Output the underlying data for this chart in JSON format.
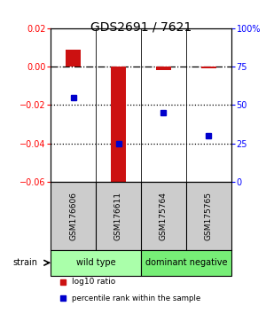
{
  "title": "GDS2691 / 7621",
  "samples": [
    "GSM176606",
    "GSM176611",
    "GSM175764",
    "GSM175765"
  ],
  "log10_ratio": [
    0.009,
    -0.065,
    -0.002,
    -0.001
  ],
  "percentile_rank": [
    55,
    25,
    45,
    30
  ],
  "ylim_left": [
    -0.06,
    0.02
  ],
  "ylim_right": [
    0,
    100
  ],
  "yticks_left": [
    -0.06,
    -0.04,
    -0.02,
    0.0,
    0.02
  ],
  "yticks_right": [
    0,
    25,
    50,
    75,
    100
  ],
  "ytick_labels_right": [
    "0",
    "25",
    "50",
    "75",
    "100%"
  ],
  "hlines_dotted": [
    -0.02,
    -0.04
  ],
  "hline_dashdot": 0.0,
  "bar_color": "#cc1111",
  "dot_color": "#0000cc",
  "bar_width": 0.32,
  "groups": [
    {
      "label": "wild type",
      "samples": [
        0,
        1
      ],
      "color": "#aaffaa"
    },
    {
      "label": "dominant negative",
      "samples": [
        2,
        3
      ],
      "color": "#77ee77"
    }
  ],
  "strain_label": "strain",
  "legend_red_label": "log10 ratio",
  "legend_blue_label": "percentile rank within the sample",
  "background_color": "#ffffff",
  "sample_box_color": "#cccccc",
  "title_color": "#000000",
  "title_fontsize": 10,
  "ytick_fontsize": 7,
  "sample_fontsize": 6.5,
  "group_fontsize": 7,
  "legend_fontsize": 6.5
}
